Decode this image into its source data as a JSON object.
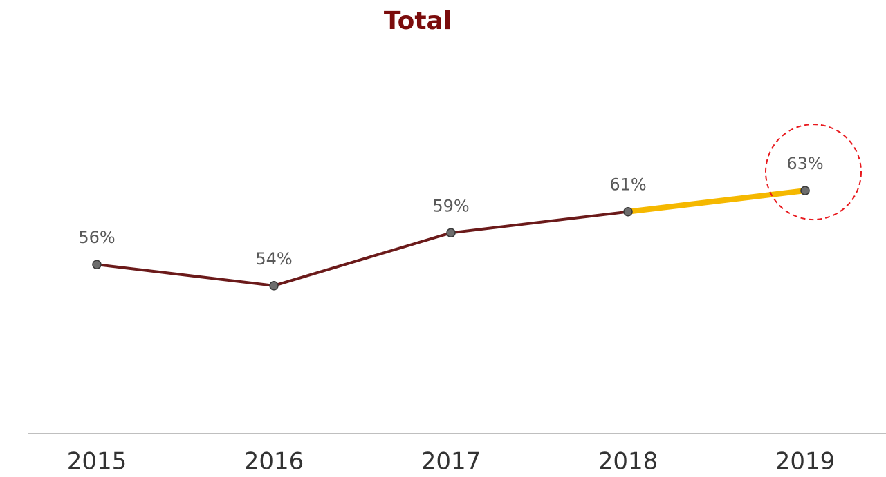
{
  "chart_data": {
    "type": "line",
    "title": "Total",
    "categories": [
      "2015",
      "2016",
      "2017",
      "2018",
      "2019"
    ],
    "series": [
      {
        "name": "Total",
        "color": "#6b1a1a",
        "values": [
          56,
          54,
          59,
          61,
          63
        ],
        "value_labels": [
          "56%",
          "54%",
          "59%",
          "61%",
          "63%"
        ]
      }
    ],
    "highlight_color": "#f5b800",
    "highlight_from_index": 3,
    "annotation_circle_color": "#e8191e",
    "ylim": [
      40,
      80
    ]
  }
}
